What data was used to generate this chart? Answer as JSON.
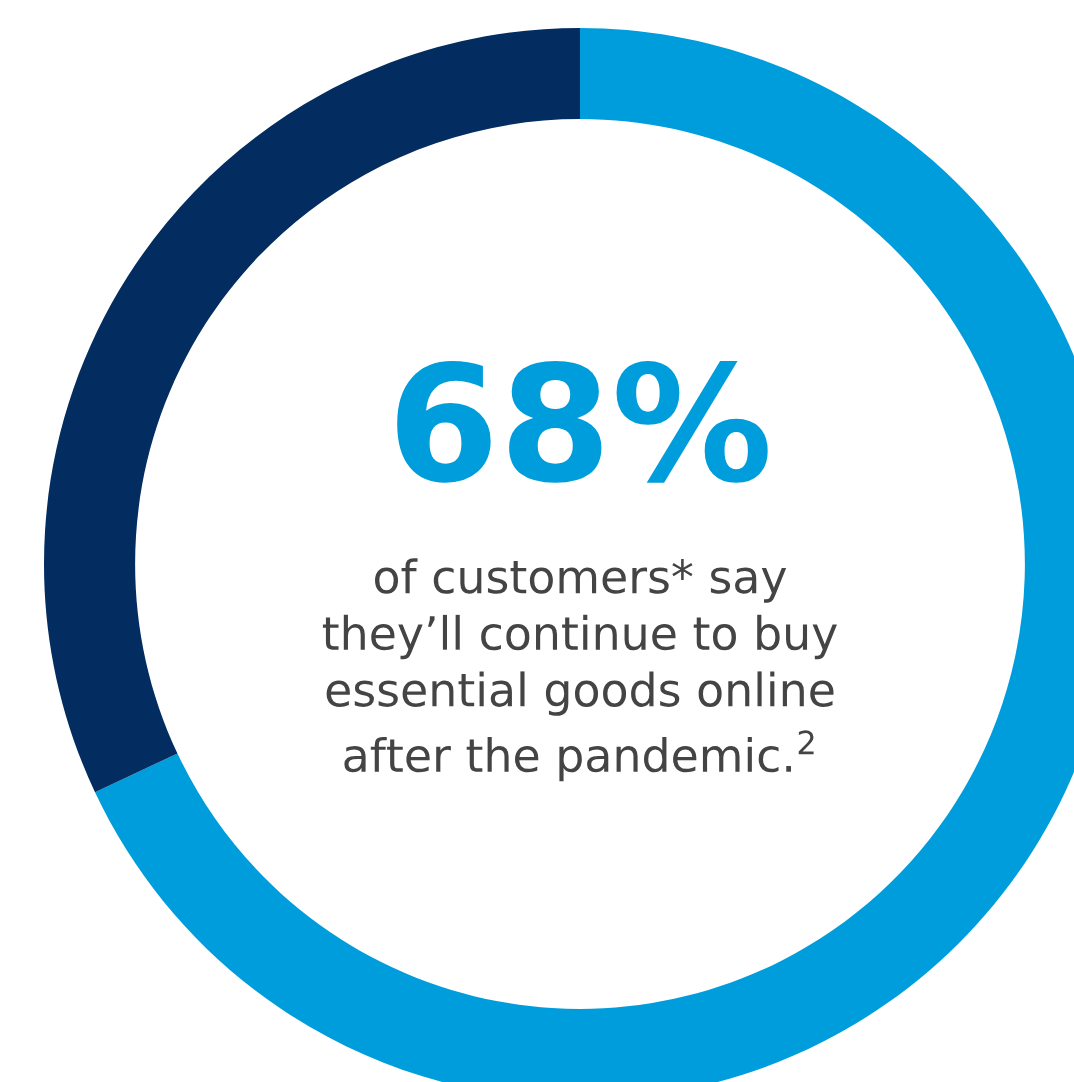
{
  "chart_data": {
    "type": "donut",
    "categories": [
      null,
      null
    ],
    "values": [
      68,
      32
    ],
    "colors": [
      "#009ddc",
      "#032d60"
    ],
    "value_labels": [
      "68%",
      null
    ],
    "annotations": [
      "of customers* say\nthey’ll continue to buy\nessential goods online\nafter the pandemic.$^{2}$"
    ]
  }
}
